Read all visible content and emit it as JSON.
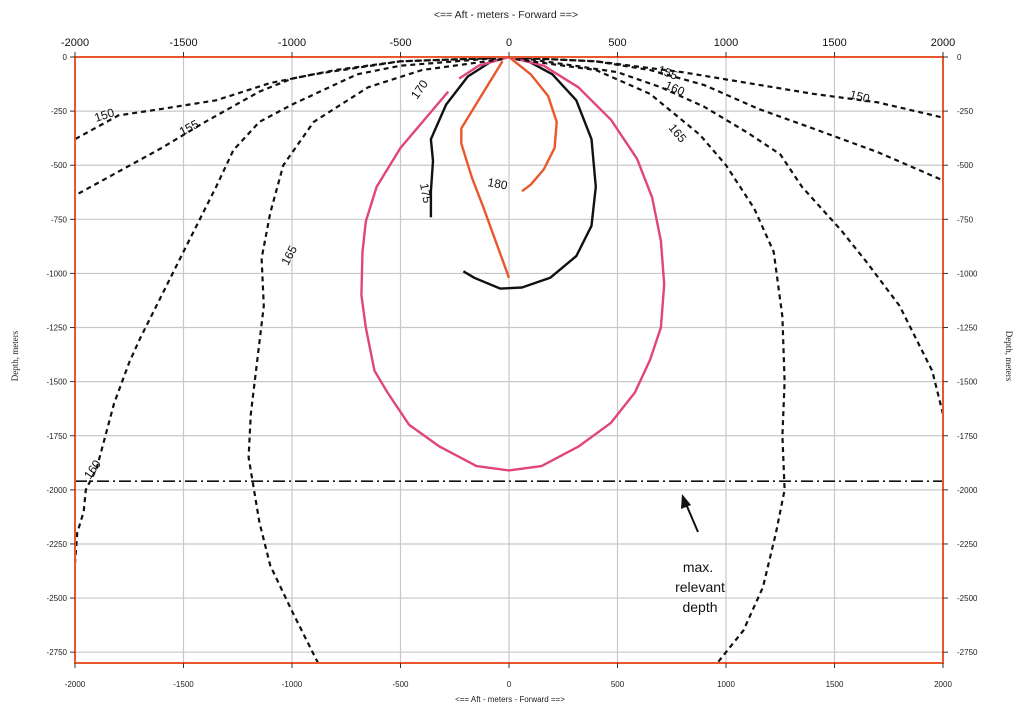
{
  "chart_data": {
    "type": "line",
    "title": "",
    "xlabel_top": "<==  Aft  - meters - Forward  ==>",
    "xlabel_bottom": "<==  Aft  - meters - Forward  ==>",
    "ylabel": "Depth, meters",
    "xlim": [
      -2000,
      2000
    ],
    "ylim": [
      -2800,
      0
    ],
    "xticks": [
      -2000,
      -1500,
      -1000,
      -500,
      0,
      500,
      1000,
      1500,
      2000
    ],
    "yticks": [
      0,
      -250,
      -500,
      -750,
      -1000,
      -1250,
      -1500,
      -1750,
      -2000,
      -2250,
      -2500,
      -2750
    ],
    "grid": true,
    "colors": {
      "frame": "#e8582c",
      "grid": "#c8c8c8",
      "black": "#111111",
      "pink": "#e0457e",
      "orange": "#e8582c"
    },
    "series": [
      {
        "name": "180",
        "style": "solid",
        "color": "#e8582c",
        "points": [
          [
            -30,
            -20
          ],
          [
            -110,
            -150
          ],
          [
            -220,
            -330
          ],
          [
            -220,
            -400
          ],
          [
            -170,
            -560
          ],
          [
            -120,
            -690
          ],
          [
            0,
            -1020
          ],
          [
            0,
            -1020
          ]
        ]
      },
      {
        "name": "",
        "style": "solid",
        "color": "#e8582c",
        "points": [
          [
            0,
            0
          ],
          [
            100,
            -80
          ],
          [
            180,
            -180
          ],
          [
            220,
            -300
          ],
          [
            210,
            -420
          ],
          [
            160,
            -520
          ],
          [
            100,
            -590
          ],
          [
            60,
            -620
          ]
        ]
      },
      {
        "name": "175",
        "style": "solid",
        "color": "#111111",
        "points": [
          [
            -360,
            -740
          ],
          [
            -360,
            -620
          ],
          [
            -350,
            -480
          ],
          [
            -360,
            -380
          ],
          [
            -290,
            -220
          ],
          [
            -190,
            -90
          ],
          [
            -80,
            -20
          ],
          [
            0,
            0
          ],
          [
            80,
            -15
          ],
          [
            200,
            -80
          ],
          [
            310,
            -200
          ],
          [
            380,
            -380
          ],
          [
            400,
            -600
          ],
          [
            380,
            -780
          ],
          [
            310,
            -920
          ],
          [
            190,
            -1020
          ],
          [
            60,
            -1065
          ],
          [
            -40,
            -1070
          ],
          [
            -160,
            -1020
          ],
          [
            -210,
            -990
          ]
        ]
      },
      {
        "name": "170",
        "style": "solid",
        "color": "#e0457e",
        "points": [
          [
            -280,
            -160
          ],
          [
            -500,
            -420
          ],
          [
            -610,
            -600
          ],
          [
            -660,
            -760
          ],
          [
            -675,
            -900
          ],
          [
            -680,
            -1100
          ],
          [
            -660,
            -1250
          ],
          [
            -620,
            -1450
          ],
          [
            -560,
            -1550
          ],
          [
            -460,
            -1700
          ],
          [
            -320,
            -1800
          ],
          [
            -150,
            -1890
          ],
          [
            0,
            -1910
          ],
          [
            150,
            -1890
          ],
          [
            320,
            -1800
          ],
          [
            470,
            -1690
          ],
          [
            580,
            -1550
          ],
          [
            650,
            -1400
          ],
          [
            700,
            -1250
          ],
          [
            715,
            -1050
          ],
          [
            700,
            -850
          ],
          [
            660,
            -650
          ],
          [
            590,
            -470
          ],
          [
            470,
            -290
          ],
          [
            320,
            -140
          ],
          [
            160,
            -40
          ],
          [
            0,
            0
          ],
          [
            -140,
            -40
          ],
          [
            -230,
            -100
          ]
        ]
      },
      {
        "name": "165",
        "style": "dashed",
        "color": "#111111",
        "points": [
          [
            -30,
            -10
          ],
          [
            -400,
            -60
          ],
          [
            -650,
            -140
          ],
          [
            -900,
            -300
          ],
          [
            -1040,
            -500
          ],
          [
            -1100,
            -720
          ],
          [
            -1140,
            -930
          ],
          [
            -1130,
            -1150
          ],
          [
            -1160,
            -1400
          ],
          [
            -1190,
            -1650
          ],
          [
            -1200,
            -1850
          ],
          [
            -1150,
            -2150
          ],
          [
            -1100,
            -2350
          ],
          [
            -1000,
            -2560
          ],
          [
            -880,
            -2800
          ]
        ]
      },
      {
        "name": "165",
        "style": "dashed",
        "color": "#111111",
        "points": [
          [
            30,
            -10
          ],
          [
            400,
            -60
          ],
          [
            650,
            -170
          ],
          [
            880,
            -360
          ],
          [
            1000,
            -500
          ],
          [
            1130,
            -700
          ],
          [
            1220,
            -900
          ],
          [
            1260,
            -1200
          ],
          [
            1270,
            -1500
          ],
          [
            1260,
            -1750
          ],
          [
            1270,
            -2000
          ],
          [
            1230,
            -2200
          ],
          [
            1170,
            -2450
          ],
          [
            1080,
            -2650
          ],
          [
            960,
            -2800
          ]
        ]
      },
      {
        "name": "160",
        "style": "dashed",
        "color": "#111111",
        "points": [
          [
            -60,
            -5
          ],
          [
            -500,
            -40
          ],
          [
            -700,
            -80
          ],
          [
            -1000,
            -220
          ],
          [
            -1150,
            -300
          ],
          [
            -1270,
            -430
          ],
          [
            -1350,
            -600
          ],
          [
            -1480,
            -860
          ],
          [
            -1600,
            -1100
          ],
          [
            -1700,
            -1300
          ],
          [
            -1750,
            -1410
          ],
          [
            -1820,
            -1600
          ],
          [
            -1900,
            -1900
          ],
          [
            -1950,
            -2000
          ],
          [
            -1960,
            -2100
          ],
          [
            -1990,
            -2200
          ],
          [
            -2000,
            -2340
          ]
        ]
      },
      {
        "name": "160",
        "style": "dashed",
        "color": "#111111",
        "points": [
          [
            60,
            -5
          ],
          [
            300,
            -40
          ],
          [
            500,
            -70
          ],
          [
            700,
            -140
          ],
          [
            900,
            -230
          ],
          [
            1100,
            -350
          ],
          [
            1250,
            -450
          ],
          [
            1350,
            -600
          ],
          [
            1530,
            -800
          ],
          [
            1650,
            -950
          ],
          [
            1800,
            -1150
          ],
          [
            1900,
            -1350
          ],
          [
            1950,
            -1450
          ],
          [
            2000,
            -1650
          ]
        ]
      },
      {
        "name": "155",
        "style": "dashed",
        "color": "#111111",
        "points": [
          [
            -70,
            -5
          ],
          [
            -500,
            -20
          ],
          [
            -800,
            -60
          ],
          [
            -1000,
            -100
          ],
          [
            -1150,
            -160
          ],
          [
            -1400,
            -300
          ],
          [
            -1600,
            -420
          ],
          [
            -1800,
            -530
          ],
          [
            -2000,
            -640
          ]
        ]
      },
      {
        "name": "155",
        "style": "dashed",
        "color": "#111111",
        "points": [
          [
            70,
            -5
          ],
          [
            400,
            -20
          ],
          [
            650,
            -60
          ],
          [
            900,
            -130
          ],
          [
            1150,
            -240
          ],
          [
            1400,
            -330
          ],
          [
            1700,
            -440
          ],
          [
            2000,
            -570
          ]
        ]
      },
      {
        "name": "150",
        "style": "dashed",
        "color": "#111111",
        "points": [
          [
            -80,
            -5
          ],
          [
            -500,
            -20
          ],
          [
            -900,
            -80
          ],
          [
            -1100,
            -120
          ],
          [
            -1350,
            -200
          ],
          [
            -1600,
            -240
          ],
          [
            -1800,
            -270
          ],
          [
            -2000,
            -380
          ]
        ]
      },
      {
        "name": "150",
        "style": "dashed",
        "color": "#111111",
        "points": [
          [
            80,
            -5
          ],
          [
            400,
            -20
          ],
          [
            800,
            -70
          ],
          [
            1100,
            -120
          ],
          [
            1400,
            -170
          ],
          [
            1700,
            -210
          ],
          [
            2000,
            -280
          ]
        ]
      }
    ],
    "reference_line": {
      "y": -1960,
      "style": "dash-dot",
      "label": "max. relevant depth"
    },
    "contour_labels": [
      "150",
      "155",
      "160",
      "165",
      "170",
      "175",
      "180"
    ]
  },
  "labels": {
    "c150_left": "150",
    "c155_left": "155",
    "c165_left": "165",
    "c160_left": "160",
    "c170": "170",
    "c175": "175",
    "c180": "180",
    "c155_right": "155",
    "c160_right": "160",
    "c165_right": "165",
    "c150_right": "150",
    "annot_line1": "max.",
    "annot_line2": "relevant",
    "annot_line3": "depth"
  }
}
